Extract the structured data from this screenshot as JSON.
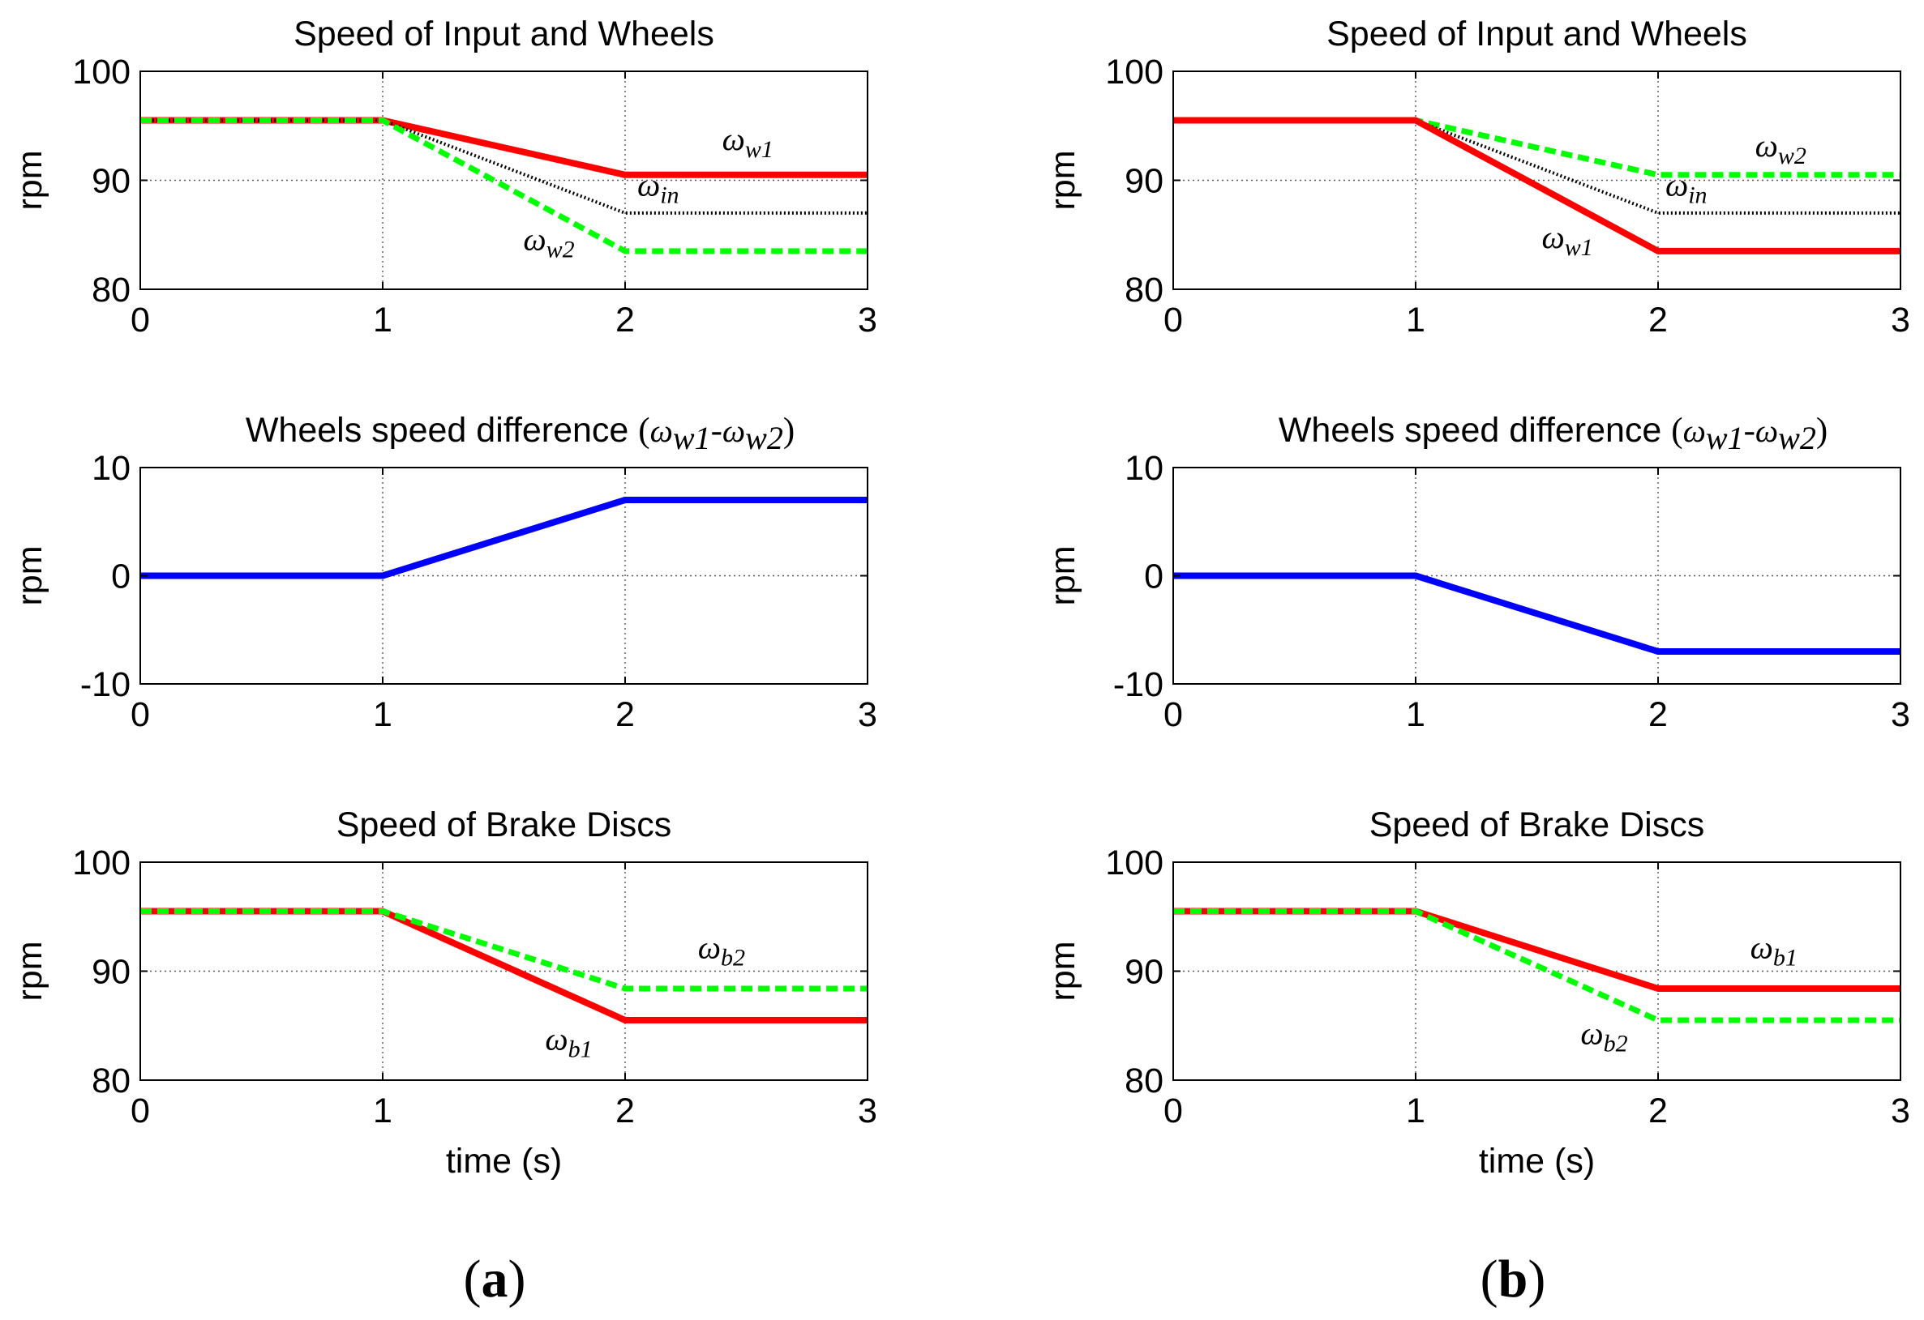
{
  "figure_labels": {
    "a": {
      "open": "(",
      "letter": "a",
      "close": ")"
    },
    "b": {
      "open": "(",
      "letter": "b",
      "close": ")"
    }
  },
  "colors": {
    "red": "#ff0000",
    "green": "#00ff00",
    "blue": "#0000ff",
    "black": "#000000"
  },
  "chart_data": [
    {
      "id": "a1",
      "type": "line",
      "title": "Speed of Input and Wheels",
      "xlabel": "",
      "ylabel": "rpm",
      "xlim": [
        0,
        3
      ],
      "ylim": [
        80,
        100
      ],
      "xticks": [
        0,
        1,
        2,
        3
      ],
      "yticks": [
        80,
        90,
        100
      ],
      "grid": true,
      "series": [
        {
          "name": "ω_w1",
          "color": "#ff0000",
          "style": "solid",
          "x": [
            0,
            1,
            2,
            3
          ],
          "y": [
            95.5,
            95.5,
            90.5,
            90.5
          ]
        },
        {
          "name": "ω_in",
          "color": "#000000",
          "style": "dotted",
          "x": [
            0,
            1,
            2,
            3
          ],
          "y": [
            95.5,
            95.5,
            87,
            87
          ]
        },
        {
          "name": "ω_w2",
          "color": "#00ff00",
          "style": "dashed",
          "x": [
            0,
            1,
            2,
            3
          ],
          "y": [
            95.5,
            95.5,
            83.5,
            83.5
          ]
        }
      ],
      "annotations": [
        {
          "base": "ω",
          "sub": "w1",
          "x": 2.4,
          "y": 92.8
        },
        {
          "base": "ω",
          "sub": "in",
          "x": 2.05,
          "y": 88.6
        },
        {
          "base": "ω",
          "sub": "w2",
          "x": 1.58,
          "y": 83.6
        }
      ]
    },
    {
      "id": "a2",
      "type": "line",
      "title": "Wheels speed difference",
      "title_math": {
        "open": "(",
        "base1": "ω",
        "sub1": "w1",
        "minus": "-",
        "base2": "ω",
        "sub2": "w2",
        "close": ")"
      },
      "xlabel": "",
      "ylabel": "rpm",
      "xlim": [
        0,
        3
      ],
      "ylim": [
        -10,
        10
      ],
      "xticks": [
        0,
        1,
        2,
        3
      ],
      "yticks": [
        -10,
        0,
        10
      ],
      "grid": true,
      "series": [
        {
          "name": "ω_w1-ω_w2",
          "color": "#0000ff",
          "style": "solid",
          "x": [
            0,
            1,
            2,
            3
          ],
          "y": [
            0,
            0,
            7,
            7
          ]
        }
      ],
      "annotations": []
    },
    {
      "id": "a3",
      "type": "line",
      "title": "Speed of Brake Discs",
      "xlabel": "time (s)",
      "ylabel": "rpm",
      "xlim": [
        0,
        3
      ],
      "ylim": [
        80,
        100
      ],
      "xticks": [
        0,
        1,
        2,
        3
      ],
      "yticks": [
        80,
        90,
        100
      ],
      "grid": true,
      "series": [
        {
          "name": "ω_b1",
          "color": "#ff0000",
          "style": "solid",
          "x": [
            0,
            1,
            2,
            3
          ],
          "y": [
            95.5,
            95.5,
            85.5,
            85.5
          ]
        },
        {
          "name": "ω_b2",
          "color": "#00ff00",
          "style": "dashed",
          "x": [
            0,
            1,
            2,
            3
          ],
          "y": [
            95.5,
            95.5,
            88.4,
            88.4
          ]
        }
      ],
      "annotations": [
        {
          "base": "ω",
          "sub": "b2",
          "x": 2.3,
          "y": 91.2
        },
        {
          "base": "ω",
          "sub": "b1",
          "x": 1.67,
          "y": 82.8
        }
      ]
    },
    {
      "id": "b1",
      "type": "line",
      "title": "Speed of Input and Wheels",
      "xlabel": "",
      "ylabel": "rpm",
      "xlim": [
        0,
        3
      ],
      "ylim": [
        80,
        100
      ],
      "xticks": [
        0,
        1,
        2,
        3
      ],
      "yticks": [
        80,
        90,
        100
      ],
      "grid": true,
      "series": [
        {
          "name": "ω_w2",
          "color": "#00ff00",
          "style": "dashed",
          "x": [
            0,
            1,
            2,
            3
          ],
          "y": [
            95.5,
            95.5,
            90.5,
            90.5
          ]
        },
        {
          "name": "ω_in",
          "color": "#000000",
          "style": "dotted",
          "x": [
            0,
            1,
            2,
            3
          ],
          "y": [
            95.5,
            95.5,
            87,
            87
          ]
        },
        {
          "name": "ω_w1",
          "color": "#ff0000",
          "style": "solid",
          "x": [
            0,
            1,
            2,
            3
          ],
          "y": [
            95.5,
            95.5,
            83.5,
            83.5
          ]
        }
      ],
      "annotations": [
        {
          "base": "ω",
          "sub": "w2",
          "x": 2.4,
          "y": 92.2
        },
        {
          "base": "ω",
          "sub": "in",
          "x": 2.03,
          "y": 88.6
        },
        {
          "base": "ω",
          "sub": "w1",
          "x": 1.52,
          "y": 83.8
        }
      ]
    },
    {
      "id": "b2",
      "type": "line",
      "title": "Wheels speed difference",
      "title_math": {
        "open": "(",
        "base1": "ω",
        "sub1": "w1",
        "minus": "-",
        "base2": "ω",
        "sub2": "w2",
        "close": ")"
      },
      "xlabel": "",
      "ylabel": "rpm",
      "xlim": [
        0,
        3
      ],
      "ylim": [
        -10,
        10
      ],
      "xticks": [
        0,
        1,
        2,
        3
      ],
      "yticks": [
        -10,
        0,
        10
      ],
      "grid": true,
      "series": [
        {
          "name": "ω_w1-ω_w2",
          "color": "#0000ff",
          "style": "solid",
          "x": [
            0,
            1,
            2,
            3
          ],
          "y": [
            0,
            0,
            -7,
            -7
          ]
        }
      ],
      "annotations": []
    },
    {
      "id": "b3",
      "type": "line",
      "title": "Speed of Brake Discs",
      "xlabel": "time (s)",
      "ylabel": "rpm",
      "xlim": [
        0,
        3
      ],
      "ylim": [
        80,
        100
      ],
      "xticks": [
        0,
        1,
        2,
        3
      ],
      "yticks": [
        80,
        90,
        100
      ],
      "grid": true,
      "series": [
        {
          "name": "ω_b1",
          "color": "#ff0000",
          "style": "solid",
          "x": [
            0,
            1,
            2,
            3
          ],
          "y": [
            95.5,
            95.5,
            88.4,
            88.4
          ]
        },
        {
          "name": "ω_b2",
          "color": "#00ff00",
          "style": "dashed",
          "x": [
            0,
            1,
            2,
            3
          ],
          "y": [
            95.5,
            95.5,
            85.5,
            85.5
          ]
        }
      ],
      "annotations": [
        {
          "base": "ω",
          "sub": "b1",
          "x": 2.38,
          "y": 91.2
        },
        {
          "base": "ω",
          "sub": "b2",
          "x": 1.68,
          "y": 83.3
        }
      ]
    }
  ]
}
